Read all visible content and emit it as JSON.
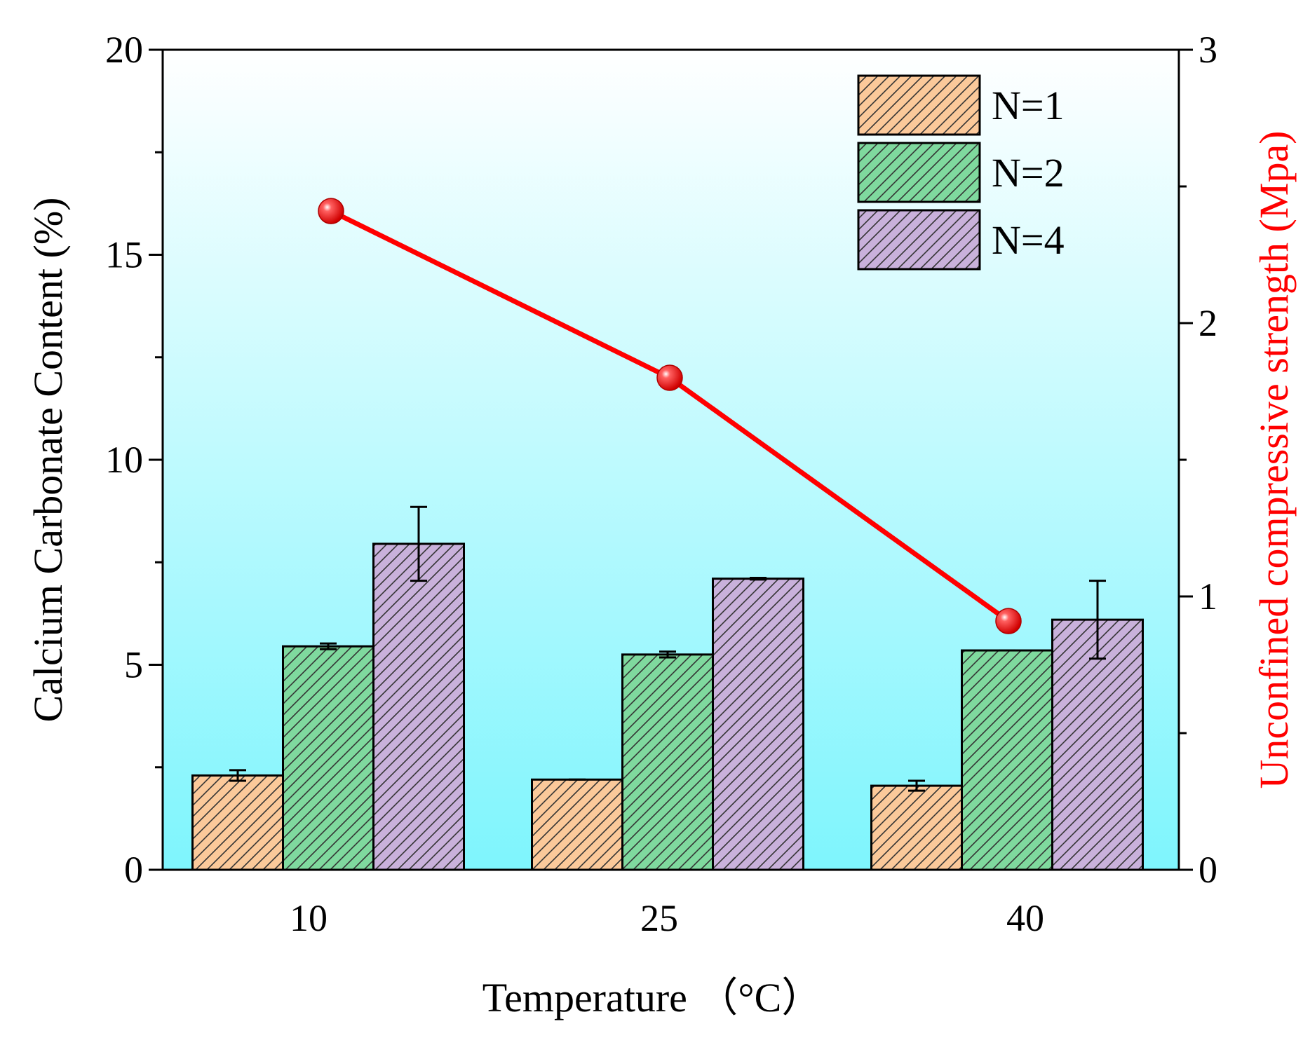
{
  "chart_data": {
    "type": "bar+line",
    "categories": [
      "10",
      "25",
      "40"
    ],
    "xlabel": "Temperature （°C）",
    "ylabel_left": "Calcium Carbonate Content (%)",
    "ylabel_right": "Unconfined compressive strength (Mpa)",
    "ylim_left": [
      0,
      20
    ],
    "ylim_right": [
      0,
      3
    ],
    "yticks_left": [
      "0",
      "5",
      "10",
      "15",
      "20"
    ],
    "yticks_right": [
      "0",
      "1",
      "2",
      "3"
    ],
    "bar_series": [
      {
        "name": "N=1",
        "values": [
          2.3,
          2.2,
          2.05
        ],
        "errors": [
          0.13,
          0,
          0.12
        ],
        "color": "#fbc99a"
      },
      {
        "name": "N=2",
        "values": [
          5.45,
          5.25,
          5.35
        ],
        "errors": [
          0.07,
          0.07,
          0
        ],
        "color": "#7fd99e"
      },
      {
        "name": "N=4",
        "values": [
          7.95,
          7.1,
          6.1
        ],
        "errors": [
          0.9,
          0.02,
          0.95
        ],
        "color": "#c9b1db"
      }
    ],
    "line_series": {
      "name": "Unconfined compressive strength",
      "axis": "right",
      "values": [
        2.41,
        1.8,
        0.91
      ],
      "color": "#ff0000"
    },
    "legend_position": "top-right",
    "background_gradient": [
      "#ffffff",
      "#7ef5fd"
    ]
  }
}
